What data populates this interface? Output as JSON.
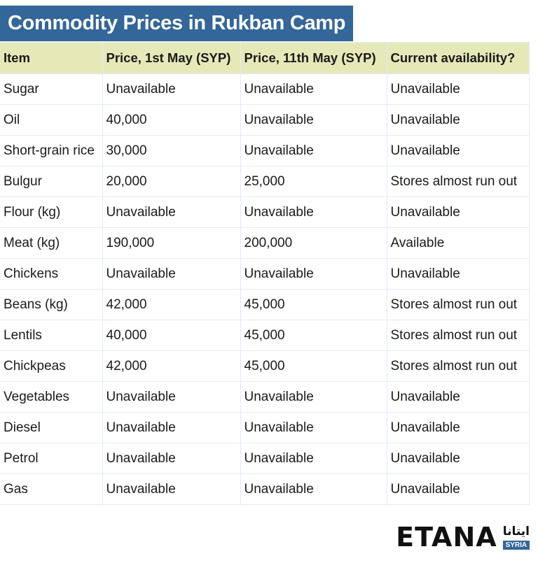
{
  "title": "Commodity Prices in Rukban Camp",
  "table": {
    "headers": [
      "Item",
      "Price, 1st May (SYP)",
      "Price, 11th May (SYP)",
      "Current availability?"
    ],
    "rows": [
      [
        "Sugar",
        "Unavailable",
        "Unavailable",
        "Unavailable"
      ],
      [
        "Oil",
        "40,000",
        "Unavailable",
        "Unavailable"
      ],
      [
        "Short-grain rice",
        "30,000",
        "Unavailable",
        "Unavailable"
      ],
      [
        "Bulgur",
        "20,000",
        "25,000",
        "Stores almost run out"
      ],
      [
        "Flour (kg)",
        "Unavailable",
        "Unavailable",
        "Unavailable"
      ],
      [
        "Meat (kg)",
        "190,000",
        "200,000",
        "Available"
      ],
      [
        "Chickens",
        "Unavailable",
        "Unavailable",
        "Unavailable"
      ],
      [
        "Beans (kg)",
        "42,000",
        "45,000",
        "Stores almost run out"
      ],
      [
        "Lentils",
        "40,000",
        "45,000",
        "Stores almost run out"
      ],
      [
        "Chickpeas",
        "42,000",
        "45,000",
        "Stores almost run out"
      ],
      [
        "Vegetables",
        "Unavailable",
        "Unavailable",
        "Unavailable"
      ],
      [
        "Diesel",
        "Unavailable",
        "Unavailable",
        "Unavailable"
      ],
      [
        "Petrol",
        "Unavailable",
        "Unavailable",
        "Unavailable"
      ],
      [
        "Gas",
        "Unavailable",
        "Unavailable",
        "Unavailable"
      ]
    ]
  },
  "logo": {
    "name": "ETANA",
    "arabic": "ايتانا",
    "sub": "SYRIA"
  },
  "colors": {
    "title_bg": "#336699",
    "header_bg": "#e6e8b8",
    "grid": "#e3e9fb"
  }
}
